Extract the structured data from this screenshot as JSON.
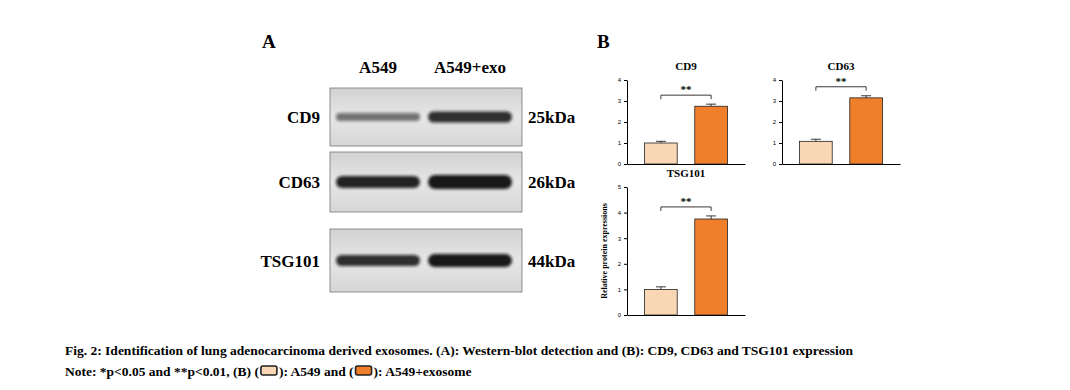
{
  "blot": {
    "panel_label": "A",
    "lanes": [
      "A549",
      "A549+exo"
    ],
    "rows": [
      {
        "label": "CD9",
        "size": "25kDa"
      },
      {
        "label": "CD63",
        "size": "26kDa"
      },
      {
        "label": "TSG101",
        "size": "44kDa"
      }
    ]
  },
  "bar_panel_label": "B",
  "chart_data": [
    {
      "type": "bar",
      "title": "CD9",
      "categories": [
        null,
        null
      ],
      "values": [
        1.0,
        2.75
      ],
      "errors": [
        0.08,
        0.1
      ],
      "colors": [
        "#fad7b4",
        "#f07f2c"
      ],
      "ylim": [
        0,
        4
      ],
      "yticks": [
        0,
        1,
        2,
        3,
        4
      ],
      "annotation": "**",
      "tick_labels": "y"
    },
    {
      "type": "bar",
      "title": "CD63",
      "categories": [
        null,
        null
      ],
      "values": [
        1.08,
        3.15
      ],
      "errors": [
        0.1,
        0.1
      ],
      "colors": [
        "#fad7b4",
        "#f07f2c"
      ],
      "ylim": [
        0,
        4
      ],
      "yticks": [
        0,
        1,
        2,
        3,
        4
      ],
      "annotation": "**",
      "tick_labels": "y"
    },
    {
      "type": "bar",
      "title": "TSG101",
      "categories": [
        null,
        null
      ],
      "values": [
        1.0,
        3.75
      ],
      "errors": [
        0.1,
        0.12
      ],
      "colors": [
        "#fad7b4",
        "#f07f2c"
      ],
      "ylim": [
        0,
        5
      ],
      "yticks": [
        0,
        1,
        2,
        3,
        4,
        5
      ],
      "annotation": "**",
      "tick_labels": "y",
      "y_label": "Relative protein expressions"
    }
  ],
  "caption": {
    "title": "Fig. 2: Identification of lung adenocarcinoma derived exosomes. (A): Western-blot detection and (B): CD9, CD63 and TSG101 expression",
    "note": [
      "Note: *p<0.05 and **p<0.01, (B) (",
      "): A549 and (",
      "): A549+exosome"
    ],
    "swatch_colors": [
      "#fad7b4",
      "#f07f2c"
    ]
  }
}
